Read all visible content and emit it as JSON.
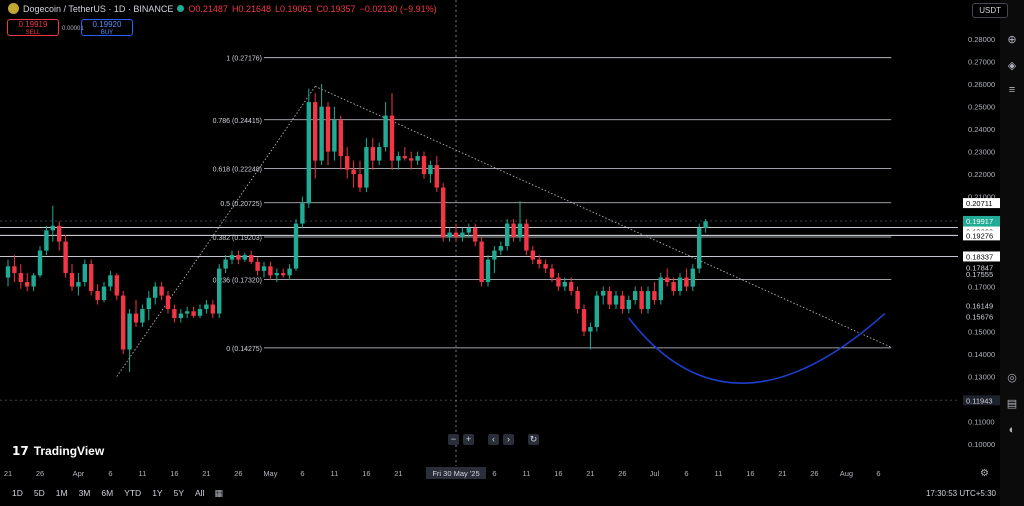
{
  "header": {
    "title": "Dogecoin / TetherUS · 1D · BINANCE",
    "open": "O0.21487",
    "high": "H0.21648",
    "low": "L0.19061",
    "close": "C0.19357",
    "change": "−0.02130 (−9.91%)"
  },
  "trade": {
    "sell_price": "0.19919",
    "sell_label": "SELL",
    "spread": "0.00001",
    "buy_price": "0.19920",
    "buy_label": "BUY"
  },
  "currency": "USDT",
  "brand": "TradingView",
  "timeframes": [
    "1D",
    "5D",
    "1M",
    "3M",
    "6M",
    "YTD",
    "1Y",
    "5Y",
    "All"
  ],
  "clock": "17:30:53 UTC+5:30",
  "colors": {
    "up": "#22ab94",
    "down": "#f23645",
    "background": "#000000",
    "fib_line": "#d1d4dc",
    "arc": "#1e3fd0"
  },
  "icons": [
    "dogecoin-icon",
    "market-open-dot-icon",
    "calendar-range-icon",
    "zoom-out-icon",
    "zoom-in-icon",
    "scroll-left-icon",
    "scroll-right-icon",
    "reset-chart-icon",
    "settings-icon",
    "crosshair-icon"
  ],
  "chart_data": {
    "type": "candlestick",
    "y_axis": {
      "ylim": [
        0.092,
        0.2894
      ],
      "ticks": [
        "0.28000",
        "0.27000",
        "0.26000",
        "0.25000",
        "0.24000",
        "0.23000",
        "0.22000",
        "0.21000",
        "0.20000",
        "0.17000",
        "0.15000",
        "0.14000",
        "0.13000",
        "0.12000",
        "0.11000",
        "0.10000"
      ],
      "tick_values": [
        0.28,
        0.27,
        0.26,
        0.25,
        0.24,
        0.23,
        0.22,
        0.21,
        0.2,
        0.17,
        0.15,
        0.14,
        0.13,
        0.12,
        0.11,
        0.1
      ]
    },
    "x_axis": {
      "labels": [
        "21",
        "26",
        "Apr",
        "6",
        "11",
        "16",
        "21",
        "26",
        "May",
        "6",
        "11",
        "16",
        "21",
        "26",
        "6",
        "11",
        "16",
        "21",
        "26",
        "Jul",
        "6",
        "11",
        "16",
        "21",
        "26",
        "Aug",
        "6"
      ],
      "label_index": [
        0,
        5,
        11,
        16,
        21,
        26,
        31,
        36,
        41,
        46,
        51,
        56,
        61,
        66,
        76,
        81,
        86,
        91,
        96,
        101,
        106,
        111,
        116,
        121,
        126,
        131,
        136
      ],
      "crosshair_label": "Fri 30 May '25",
      "crosshair_index": 70
    },
    "price_labels": [
      {
        "text": "0.20711",
        "value": 0.20711,
        "style": "white"
      },
      {
        "text": "0.19917",
        "value": 0.19917,
        "style": "green"
      },
      {
        "text": "11:59:07",
        "value": 0.19621,
        "style": "green-sub"
      },
      {
        "text": "0.19623",
        "value": 0.19623,
        "style": "white"
      },
      {
        "text": "0.19276",
        "value": 0.19276,
        "style": "white"
      },
      {
        "text": "0.18337",
        "value": 0.18337,
        "style": "white"
      },
      {
        "text": "0.17847",
        "value": 0.17847,
        "style": "plain"
      },
      {
        "text": "0.17555",
        "value": 0.17555,
        "style": "plain"
      },
      {
        "text": "0.16149",
        "value": 0.16149,
        "style": "plain"
      },
      {
        "text": "0.15676",
        "value": 0.15676,
        "style": "plain"
      },
      {
        "text": "0.11943",
        "value": 0.11943,
        "style": "dark"
      }
    ],
    "fib_levels": [
      {
        "label": "1 (0.27176)",
        "value": 0.27176
      },
      {
        "label": "0.786 (0.24415)",
        "value": 0.24415
      },
      {
        "label": "0.618 (0.22248)",
        "value": 0.22248
      },
      {
        "label": "0.5 (0.20725)",
        "value": 0.20725
      },
      {
        "label": "0.382 (0.19203)",
        "value": 0.19203
      },
      {
        "label": "0.236 (0.17320)",
        "value": 0.1732
      },
      {
        "label": "0 (0.14275)",
        "value": 0.14275
      }
    ],
    "horizontal_lines": [
      0.19623,
      0.19276,
      0.18337
    ],
    "dotted_lines": [
      0.19917,
      0.11943
    ],
    "fib_range_index": [
      40,
      138
    ],
    "candles": [
      [
        0.174,
        0.182,
        0.17,
        0.179
      ],
      [
        0.179,
        0.184,
        0.172,
        0.176
      ],
      [
        0.176,
        0.18,
        0.169,
        0.172
      ],
      [
        0.172,
        0.176,
        0.168,
        0.17
      ],
      [
        0.17,
        0.176,
        0.168,
        0.175
      ],
      [
        0.175,
        0.188,
        0.174,
        0.186
      ],
      [
        0.186,
        0.197,
        0.184,
        0.195
      ],
      [
        0.195,
        0.206,
        0.19,
        0.197
      ],
      [
        0.197,
        0.199,
        0.186,
        0.19
      ],
      [
        0.19,
        0.193,
        0.174,
        0.176
      ],
      [
        0.176,
        0.18,
        0.168,
        0.17
      ],
      [
        0.17,
        0.176,
        0.166,
        0.172
      ],
      [
        0.172,
        0.182,
        0.17,
        0.18
      ],
      [
        0.18,
        0.182,
        0.166,
        0.168
      ],
      [
        0.168,
        0.171,
        0.162,
        0.164
      ],
      [
        0.164,
        0.172,
        0.163,
        0.17
      ],
      [
        0.17,
        0.177,
        0.168,
        0.175
      ],
      [
        0.175,
        0.176,
        0.164,
        0.166
      ],
      [
        0.166,
        0.168,
        0.14,
        0.142
      ],
      [
        0.142,
        0.16,
        0.132,
        0.158
      ],
      [
        0.158,
        0.164,
        0.152,
        0.154
      ],
      [
        0.154,
        0.162,
        0.152,
        0.16
      ],
      [
        0.16,
        0.168,
        0.155,
        0.165
      ],
      [
        0.165,
        0.172,
        0.162,
        0.17
      ],
      [
        0.17,
        0.172,
        0.164,
        0.166
      ],
      [
        0.166,
        0.168,
        0.158,
        0.16
      ],
      [
        0.16,
        0.162,
        0.154,
        0.156
      ],
      [
        0.156,
        0.16,
        0.154,
        0.158
      ],
      [
        0.158,
        0.161,
        0.156,
        0.159
      ],
      [
        0.159,
        0.161,
        0.156,
        0.157
      ],
      [
        0.157,
        0.162,
        0.156,
        0.16
      ],
      [
        0.16,
        0.164,
        0.158,
        0.162
      ],
      [
        0.162,
        0.164,
        0.156,
        0.158
      ],
      [
        0.158,
        0.18,
        0.156,
        0.178
      ],
      [
        0.178,
        0.184,
        0.176,
        0.182
      ],
      [
        0.182,
        0.186,
        0.18,
        0.184
      ],
      [
        0.184,
        0.186,
        0.18,
        0.182
      ],
      [
        0.182,
        0.185,
        0.181,
        0.184
      ],
      [
        0.184,
        0.186,
        0.18,
        0.181
      ],
      [
        0.181,
        0.183,
        0.175,
        0.177
      ],
      [
        0.177,
        0.181,
        0.174,
        0.179
      ],
      [
        0.179,
        0.181,
        0.173,
        0.175
      ],
      [
        0.175,
        0.178,
        0.172,
        0.176
      ],
      [
        0.176,
        0.178,
        0.174,
        0.175
      ],
      [
        0.175,
        0.18,
        0.173,
        0.178
      ],
      [
        0.178,
        0.2,
        0.177,
        0.198
      ],
      [
        0.198,
        0.21,
        0.196,
        0.207
      ],
      [
        0.207,
        0.258,
        0.205,
        0.252
      ],
      [
        0.252,
        0.256,
        0.218,
        0.226
      ],
      [
        0.226,
        0.26,
        0.224,
        0.25
      ],
      [
        0.25,
        0.252,
        0.224,
        0.23
      ],
      [
        0.23,
        0.25,
        0.226,
        0.244
      ],
      [
        0.244,
        0.246,
        0.222,
        0.228
      ],
      [
        0.228,
        0.232,
        0.218,
        0.222
      ],
      [
        0.222,
        0.226,
        0.214,
        0.22
      ],
      [
        0.22,
        0.226,
        0.212,
        0.214
      ],
      [
        0.214,
        0.236,
        0.212,
        0.232
      ],
      [
        0.232,
        0.236,
        0.222,
        0.226
      ],
      [
        0.226,
        0.234,
        0.224,
        0.232
      ],
      [
        0.232,
        0.252,
        0.23,
        0.246
      ],
      [
        0.246,
        0.256,
        0.222,
        0.226
      ],
      [
        0.226,
        0.23,
        0.222,
        0.228
      ],
      [
        0.228,
        0.232,
        0.226,
        0.227
      ],
      [
        0.227,
        0.23,
        0.222,
        0.226
      ],
      [
        0.226,
        0.23,
        0.224,
        0.228
      ],
      [
        0.228,
        0.23,
        0.218,
        0.22
      ],
      [
        0.22,
        0.226,
        0.216,
        0.224
      ],
      [
        0.224,
        0.228,
        0.212,
        0.214
      ],
      [
        0.214,
        0.216,
        0.19,
        0.192
      ],
      [
        0.192,
        0.196,
        0.19,
        0.194
      ],
      [
        0.194,
        0.198,
        0.19,
        0.192
      ],
      [
        0.192,
        0.196,
        0.19,
        0.194
      ],
      [
        0.194,
        0.198,
        0.192,
        0.196
      ],
      [
        0.196,
        0.198,
        0.188,
        0.19
      ],
      [
        0.19,
        0.192,
        0.17,
        0.172
      ],
      [
        0.172,
        0.184,
        0.17,
        0.182
      ],
      [
        0.182,
        0.188,
        0.176,
        0.186
      ],
      [
        0.186,
        0.19,
        0.184,
        0.188
      ],
      [
        0.188,
        0.2,
        0.186,
        0.198
      ],
      [
        0.198,
        0.2,
        0.19,
        0.192
      ],
      [
        0.192,
        0.208,
        0.19,
        0.198
      ],
      [
        0.198,
        0.2,
        0.184,
        0.186
      ],
      [
        0.186,
        0.188,
        0.18,
        0.182
      ],
      [
        0.182,
        0.184,
        0.178,
        0.18
      ],
      [
        0.18,
        0.182,
        0.176,
        0.178
      ],
      [
        0.178,
        0.18,
        0.172,
        0.174
      ],
      [
        0.174,
        0.176,
        0.168,
        0.17
      ],
      [
        0.17,
        0.174,
        0.168,
        0.172
      ],
      [
        0.172,
        0.174,
        0.166,
        0.168
      ],
      [
        0.168,
        0.17,
        0.158,
        0.16
      ],
      [
        0.16,
        0.162,
        0.148,
        0.15
      ],
      [
        0.15,
        0.154,
        0.142,
        0.152
      ],
      [
        0.152,
        0.168,
        0.15,
        0.166
      ],
      [
        0.166,
        0.17,
        0.162,
        0.168
      ],
      [
        0.168,
        0.17,
        0.16,
        0.162
      ],
      [
        0.162,
        0.168,
        0.16,
        0.166
      ],
      [
        0.166,
        0.168,
        0.158,
        0.16
      ],
      [
        0.16,
        0.166,
        0.158,
        0.164
      ],
      [
        0.164,
        0.17,
        0.162,
        0.168
      ],
      [
        0.168,
        0.17,
        0.158,
        0.16
      ],
      [
        0.16,
        0.17,
        0.158,
        0.168
      ],
      [
        0.168,
        0.172,
        0.162,
        0.164
      ],
      [
        0.164,
        0.176,
        0.162,
        0.174
      ],
      [
        0.174,
        0.178,
        0.17,
        0.172
      ],
      [
        0.172,
        0.174,
        0.166,
        0.168
      ],
      [
        0.168,
        0.176,
        0.166,
        0.174
      ],
      [
        0.174,
        0.178,
        0.168,
        0.17
      ],
      [
        0.17,
        0.18,
        0.168,
        0.178
      ],
      [
        0.178,
        0.198,
        0.176,
        0.196
      ],
      [
        0.196,
        0.2,
        0.194,
        0.199
      ]
    ],
    "candle_start_index": 0,
    "trendlines": [
      {
        "from": [
          17,
          0.13
        ],
        "to": [
          48,
          0.259
        ],
        "style": "dotted"
      },
      {
        "from": [
          48,
          0.259
        ],
        "to": [
          138,
          0.143
        ],
        "style": "dotted"
      }
    ],
    "arc": {
      "from": [
        97,
        0.156
      ],
      "bottom": [
        113,
        0.1258
      ],
      "to": [
        137,
        0.158
      ]
    }
  }
}
